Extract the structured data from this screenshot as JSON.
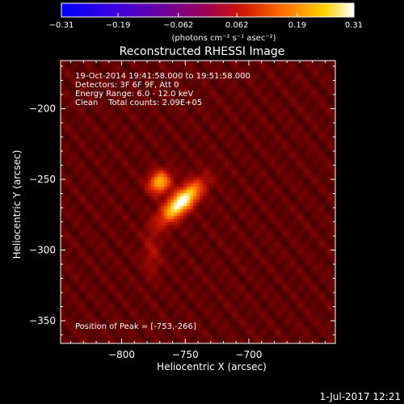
{
  "chart_data": {
    "type": "heatmap",
    "title": "Reconstructed RHESSI Image",
    "xlabel": "Heliocentric X (arcsec)",
    "ylabel": "Heliocentric Y (arcsec)",
    "xlim": [
      -848,
      -632
    ],
    "ylim": [
      -366,
      -166
    ],
    "x_ticks": [
      -800,
      -750,
      -700
    ],
    "x_tick_labels": [
      "−800",
      "−750",
      "−700"
    ],
    "y_ticks": [
      -200,
      -250,
      -300,
      -350
    ],
    "y_tick_labels": [
      "−200",
      "−250",
      "−300",
      "−350"
    ],
    "colorbar": {
      "range": [
        -0.31,
        0.31
      ],
      "ticks": [
        -0.31,
        -0.19,
        -0.062,
        0.062,
        0.19,
        0.31
      ],
      "tick_labels": [
        "−0.31",
        "−0.19",
        "−0.062",
        "0.062",
        "0.19",
        "0.31"
      ],
      "unit_label": "(photons cm⁻² s⁻¹ asec⁻²)"
    },
    "annotations": [
      "19-Oct-2014 19:41:58.000 to 19:51:58.000",
      "Detectors: 3F 6F 9F, Att 0",
      "Energy Range: 6.0 - 12.0 keV",
      "Clean    Total counts: 2.09E+05"
    ],
    "peak_label": "Position of Peak = [-753,-266]",
    "peak": {
      "x": -753,
      "y": -266,
      "value": 0.31
    },
    "sources": [
      {
        "x": -753,
        "y": -266,
        "sx": 13,
        "sy": 5,
        "angle_deg": 40,
        "amp": 0.3
      },
      {
        "x": -770,
        "y": -252,
        "sx": 6,
        "sy": 5,
        "angle_deg": 30,
        "amp": 0.21
      },
      {
        "x": -776,
        "y": -302,
        "sx": 5,
        "sy": 12,
        "angle_deg": 0,
        "amp": 0.045
      }
    ],
    "background_level": 0.03
  },
  "footer": {
    "date": "1-Jul-2017 12:21"
  },
  "colors": {
    "background": "#000000",
    "colorbar_stops": [
      "#0000ff",
      "#5a00d0",
      "#a00060",
      "#cc2000",
      "#ff7a00",
      "#ffe000",
      "#ffffff"
    ]
  }
}
